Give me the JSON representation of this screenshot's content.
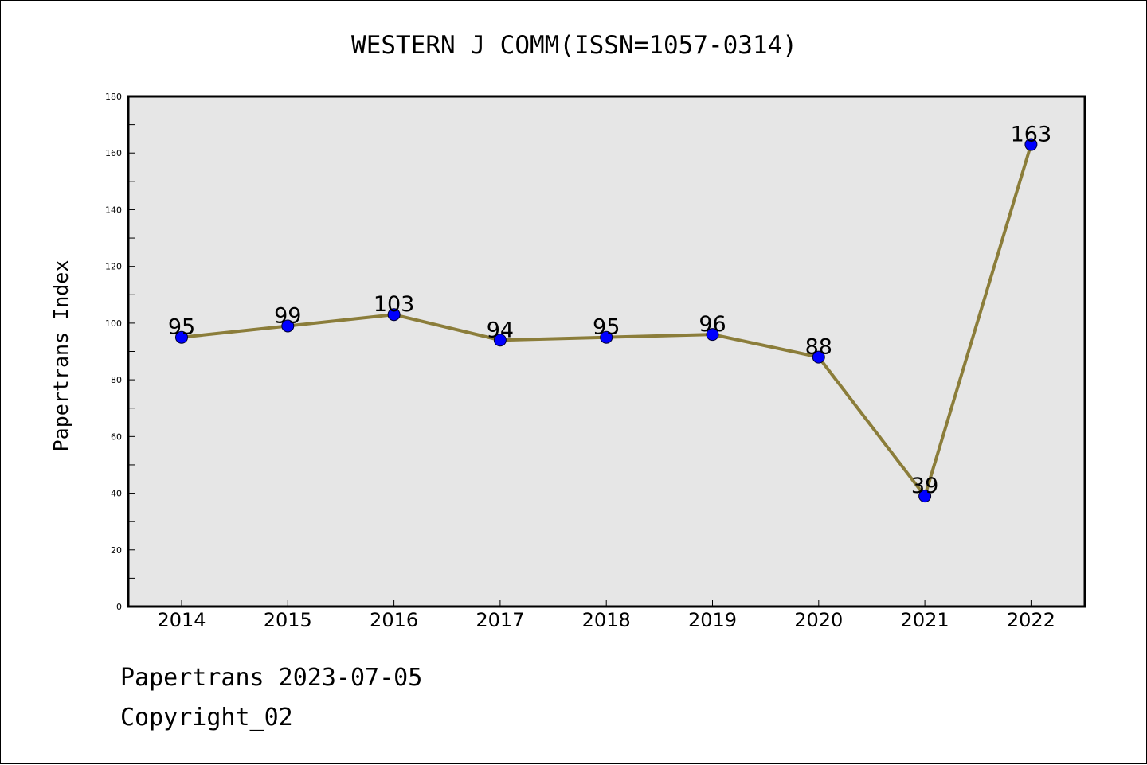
{
  "chart_data": {
    "type": "line",
    "title": "WESTERN J COMM(ISSN=1057-0314)",
    "xlabel": "",
    "ylabel": "Papertrans Index",
    "categories": [
      "2014",
      "2015",
      "2016",
      "2017",
      "2018",
      "2019",
      "2020",
      "2021",
      "2022"
    ],
    "series": [
      {
        "values": [
          95,
          99,
          103,
          94,
          95,
          96,
          88,
          39,
          163
        ]
      }
    ],
    "ylim": [
      0,
      180
    ],
    "y_ticks": [
      0,
      20,
      40,
      60,
      80,
      100,
      120,
      140,
      160,
      180
    ],
    "grid": false,
    "data_labels": true,
    "colors": {
      "line": "#8b7d3a",
      "marker": "#0000ff",
      "plot_background": "#e6e6e6"
    }
  },
  "footer": {
    "line1": "Papertrans 2023-07-05",
    "line2": "Copyright_02"
  }
}
